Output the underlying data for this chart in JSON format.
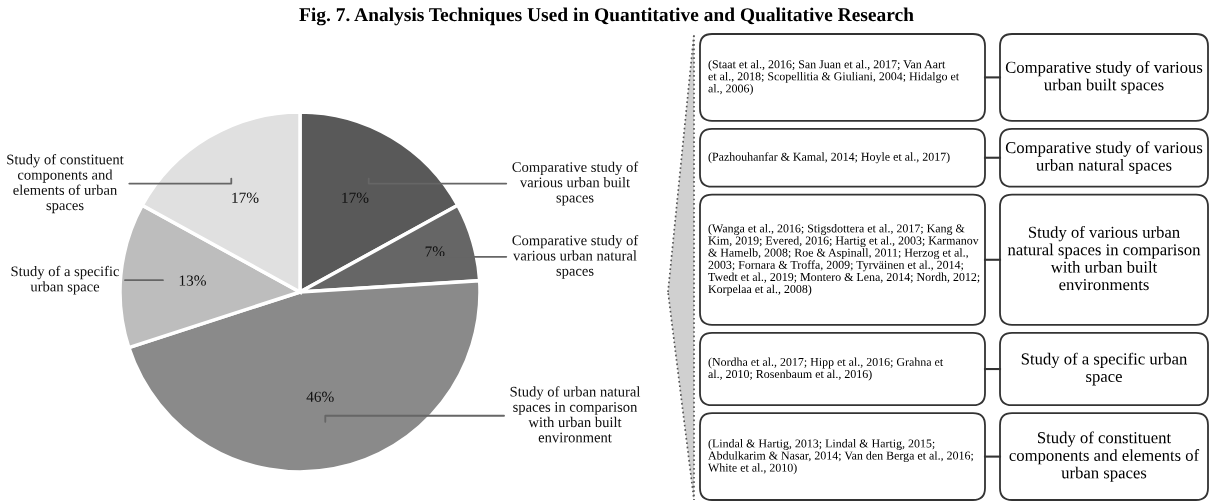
{
  "chart_data": {
    "type": "pie",
    "title": "Fig. 7. Analysis Techniques Used in Quantitative and Qualitative Research",
    "categories": [
      "Comparative study of various urban built spaces",
      "Comparative study of various urban natural spaces",
      "Study of urban natural spaces in comparison with urban built environment",
      "Study of a specific urban space",
      "Study of constituent components and elements of urban spaces"
    ],
    "values": [
      17,
      7,
      46,
      13,
      17
    ],
    "colors": [
      "#595959",
      "#666666",
      "#8a8a8a",
      "#bdbdbd",
      "#e0e0e0"
    ],
    "value_labels": [
      "17%",
      "7%",
      "46%",
      "13%",
      "17%"
    ],
    "legend": false,
    "annotations": [
      "(Staat et al., 2016; San Juan et al., 2017; Van Aart et al., 2018; Scopellitia & Giuliani, 2004; Hidalgo et al., 2006)",
      "Comparative study of various urban built spaces",
      "(Pazhouhanfar & Kamal, 2014; Hoyle et al., 2017)",
      "Comparative study of various urban natural spaces",
      "(Wanga et al., 2016; Stigsdottera et al., 2017; Kang & Kim, 2019; Evered, 2016; Hartig et al., 2003; Karmanov & Hamelb, 2008; Roe & Aspinall, 2011; Herzog et al., 2003; Fornara & Troffa, 2009; Tyrväinen et al., 2014; Twedt et al., 2019; Montero & Lena, 2014; Nordh, 2012; Korpelaa et al., 2008)",
      "Study of various urban natural spaces in comparison with urban built environments",
      "(Nordha et al., 2017; Hipp et al., 2016; Grahna et al., 2010; Rosenbaum et al., 2016)",
      "Study of a specific urban space",
      "(Lindal & Hartig, 2013; Lindal & Hartig, 2015; Abdulkarim & Nasar, 2014; Van den Berga et al., 2016; White et al., 2010)",
      "Study of constituent components and elements of urban spaces"
    ]
  }
}
